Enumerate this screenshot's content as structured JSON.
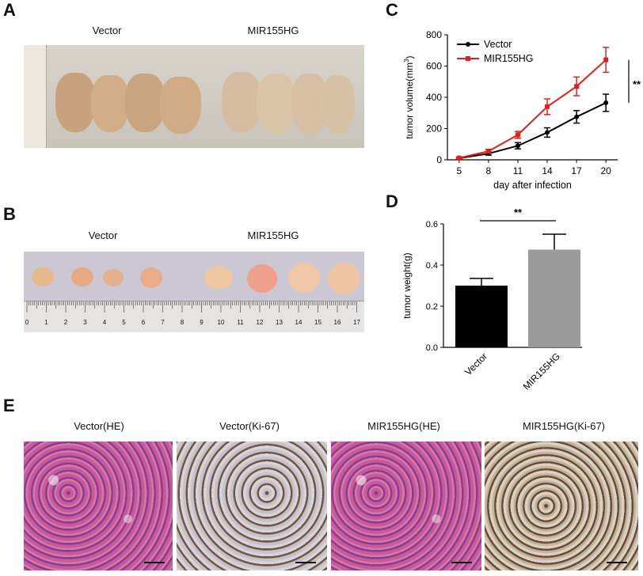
{
  "panels": {
    "A": {
      "letter": "A",
      "group1": "Vector",
      "group2": "MIR155HG"
    },
    "B": {
      "letter": "B",
      "group1": "Vector",
      "group2": "MIR155HG",
      "ruler_numbers": [
        "0",
        "1",
        "2",
        "3",
        "4",
        "5",
        "6",
        "7",
        "8",
        "9",
        "10",
        "11",
        "12",
        "13",
        "14",
        "15",
        "16",
        "17"
      ]
    },
    "C": {
      "letter": "C"
    },
    "D": {
      "letter": "D"
    },
    "E": {
      "letter": "E",
      "labels": [
        "Vector(HE)",
        "Vector(Ki-67)",
        "MIR155HG(HE)",
        "MIR155HG(Ki-67)"
      ]
    }
  },
  "chart_data": [
    {
      "type": "line",
      "title": "",
      "xlabel": "day after infection",
      "ylabel": "tumor volume(mm³)",
      "ylabel_main": "tumor volume(mm",
      "ylabel_sup": "3",
      "ylabel_end": ")",
      "x": [
        5,
        8,
        11,
        14,
        17,
        20
      ],
      "x_tick_labels": [
        "5",
        "8",
        "11",
        "14",
        "17",
        "20"
      ],
      "y_tick_labels": [
        "0",
        "200",
        "400",
        "600",
        "800"
      ],
      "ylim": [
        0,
        800
      ],
      "series": [
        {
          "name": "Vector",
          "color": "#000000",
          "values": [
            10,
            40,
            90,
            175,
            275,
            365
          ],
          "errors": [
            5,
            10,
            20,
            30,
            40,
            55
          ]
        },
        {
          "name": "MIR155HG",
          "color": "#e02020",
          "values": [
            12,
            55,
            160,
            340,
            470,
            640
          ],
          "errors": [
            5,
            12,
            22,
            50,
            60,
            80
          ]
        }
      ],
      "significance": "**"
    },
    {
      "type": "bar",
      "title": "",
      "xlabel": "",
      "ylabel": "tumor weight(g)",
      "categories": [
        "Vector",
        "MIR155HG"
      ],
      "values": [
        0.3,
        0.475
      ],
      "errors": [
        0.035,
        0.075
      ],
      "colors": [
        "#000000",
        "#9b9b9b"
      ],
      "y_tick_labels": [
        "0.0",
        "0.2",
        "0.4",
        "0.6"
      ],
      "ylim": [
        0,
        0.6
      ],
      "significance": "**"
    }
  ]
}
